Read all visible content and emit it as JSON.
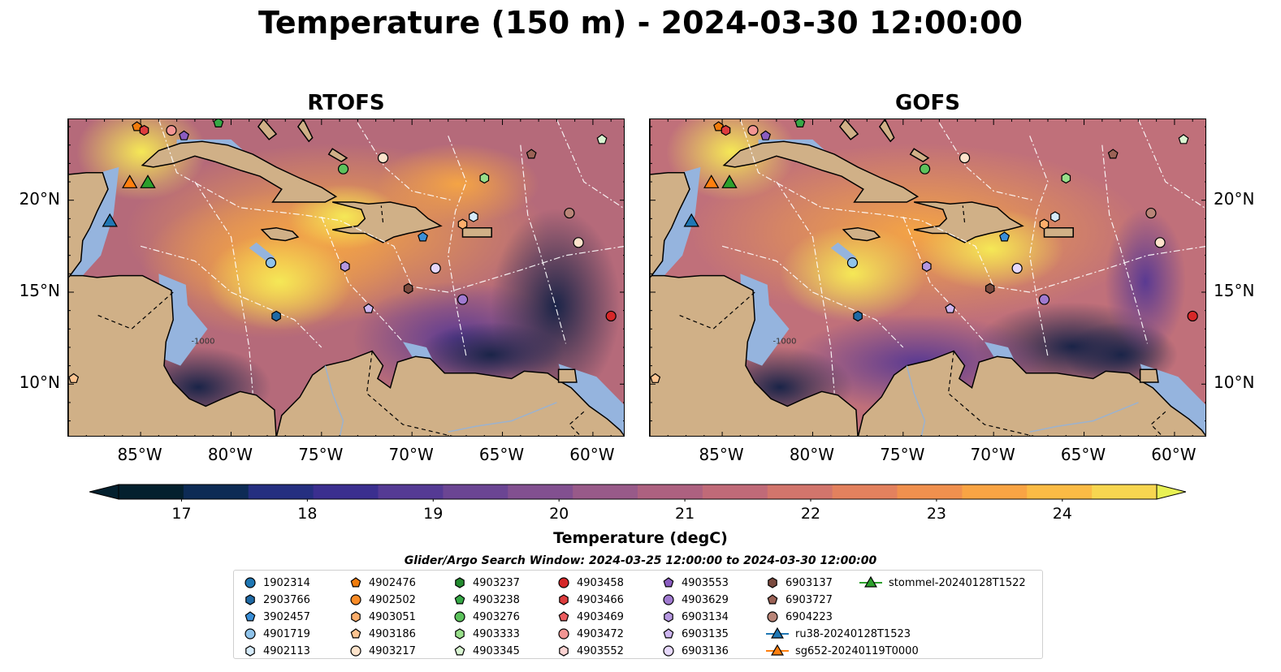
{
  "title": "Temperature (150 m) - 2024-03-30 12:00:00",
  "panels": [
    {
      "title": "RTOFS"
    },
    {
      "title": "GOFS"
    }
  ],
  "longitude_ticks": [
    "85°W",
    "80°W",
    "75°W",
    "70°W",
    "65°W",
    "60°W"
  ],
  "latitude_ticks": [
    "20°N",
    "15°N",
    "10°N"
  ],
  "colorbar": {
    "title": "Temperature (degC)",
    "ticks": [
      "17",
      "18",
      "19",
      "20",
      "21",
      "22",
      "23",
      "24"
    ],
    "range": [
      16.5,
      24.75
    ],
    "colors": [
      "#04202e",
      "#0d2b55",
      "#252f80",
      "#3b2f8f",
      "#553a94",
      "#6b4593",
      "#825090",
      "#985a89",
      "#ad6180",
      "#c06a78",
      "#d2756c",
      "#e3815e",
      "#f0904e",
      "#f9a444",
      "#fbbb45",
      "#f7d650",
      "#e8f154"
    ]
  },
  "contour_label": "-1000",
  "search_window": "Glider/Argo Search Window: 2024-03-25 12:00:00 to 2024-03-30 12:00:00",
  "legend": [
    {
      "label": "1902314",
      "marker": "circle",
      "color": "#1f77b4"
    },
    {
      "label": "2903766",
      "marker": "hexagon",
      "color": "#1f6aa5"
    },
    {
      "label": "3902457",
      "marker": "pentagon",
      "color": "#3a8fd8"
    },
    {
      "label": "4901719",
      "marker": "circle",
      "color": "#8fc3ea"
    },
    {
      "label": "4902113",
      "marker": "hexagon",
      "color": "#d6ebfa"
    },
    {
      "label": "4902476",
      "marker": "pentagon",
      "color": "#f07c0c"
    },
    {
      "label": "4902502",
      "marker": "circle",
      "color": "#fb8c27"
    },
    {
      "label": "4903051",
      "marker": "hexagon",
      "color": "#fdae6b"
    },
    {
      "label": "4903186",
      "marker": "pentagon",
      "color": "#fdc592"
    },
    {
      "label": "4903217",
      "marker": "circle",
      "color": "#fde3cb"
    },
    {
      "label": "4903237",
      "marker": "hexagon",
      "color": "#238b2f"
    },
    {
      "label": "4903238",
      "marker": "pentagon",
      "color": "#35a845"
    },
    {
      "label": "4903276",
      "marker": "circle",
      "color": "#5cc25c"
    },
    {
      "label": "4903333",
      "marker": "hexagon",
      "color": "#98df8a"
    },
    {
      "label": "4903345",
      "marker": "pentagon",
      "color": "#d9f5d2"
    },
    {
      "label": "4903458",
      "marker": "circle",
      "color": "#d62728"
    },
    {
      "label": "4903466",
      "marker": "hexagon",
      "color": "#dd3c3d"
    },
    {
      "label": "4903469",
      "marker": "pentagon",
      "color": "#ec5d5f"
    },
    {
      "label": "4903472",
      "marker": "circle",
      "color": "#f39593"
    },
    {
      "label": "4903552",
      "marker": "hexagon",
      "color": "#fbd3d2"
    },
    {
      "label": "4903553",
      "marker": "pentagon",
      "color": "#8a5cc0"
    },
    {
      "label": "4903629",
      "marker": "circle",
      "color": "#a07ad0"
    },
    {
      "label": "6903134",
      "marker": "hexagon",
      "color": "#b597e0"
    },
    {
      "label": "6903135",
      "marker": "pentagon",
      "color": "#cdb5ef"
    },
    {
      "label": "6903136",
      "marker": "circle",
      "color": "#e6d8fb"
    },
    {
      "label": "6903137",
      "marker": "hexagon",
      "color": "#7b4a3e"
    },
    {
      "label": "6903727",
      "marker": "pentagon",
      "color": "#9b6256"
    },
    {
      "label": "6904223",
      "marker": "circle",
      "color": "#b98578"
    },
    {
      "label": "ru38-20240128T1523",
      "marker": "triangle-line",
      "color": "#1f77b4"
    },
    {
      "label": "sg652-20240119T0000",
      "marker": "triangle-line",
      "color": "#ff7f0e"
    },
    {
      "label": "stommel-20240128T1522",
      "marker": "triangle-line",
      "color": "#2ca02c"
    }
  ],
  "float_positions": [
    {
      "id": "4902476",
      "lon": -85.2,
      "lat": 24.0
    },
    {
      "id": "4903466",
      "lon": -84.8,
      "lat": 23.8
    },
    {
      "id": "4903472",
      "lon": -83.3,
      "lat": 23.8
    },
    {
      "id": "4903553",
      "lon": -82.6,
      "lat": 23.5
    },
    {
      "id": "4903238",
      "lon": -80.7,
      "lat": 24.2
    },
    {
      "id": "4903276",
      "lon": -73.8,
      "lat": 21.7
    },
    {
      "id": "4903217",
      "lon": -71.6,
      "lat": 22.3
    },
    {
      "id": "6903727",
      "lon": -63.4,
      "lat": 22.5
    },
    {
      "id": "4903345",
      "lon": -59.5,
      "lat": 23.3
    },
    {
      "id": "4903333",
      "lon": -66.0,
      "lat": 21.2
    },
    {
      "id": "6904223",
      "lon": -61.3,
      "lat": 19.3
    },
    {
      "id": "4902113",
      "lon": -66.6,
      "lat": 19.1
    },
    {
      "id": "4903051",
      "lon": -67.2,
      "lat": 18.7
    },
    {
      "id": "3902457",
      "lon": -69.4,
      "lat": 18.0
    },
    {
      "id": "4903217",
      "lon": -60.8,
      "lat": 17.7
    },
    {
      "id": "4901719",
      "lon": -77.8,
      "lat": 16.6
    },
    {
      "id": "6903134",
      "lon": -73.7,
      "lat": 16.4
    },
    {
      "id": "6903136",
      "lon": -68.7,
      "lat": 16.3
    },
    {
      "id": "6903137",
      "lon": -70.2,
      "lat": 15.2
    },
    {
      "id": "4903629",
      "lon": -67.2,
      "lat": 14.6
    },
    {
      "id": "6903135",
      "lon": -72.4,
      "lat": 14.1
    },
    {
      "id": "2903766",
      "lon": -77.5,
      "lat": 13.7
    },
    {
      "id": "4903458",
      "lon": -59.0,
      "lat": 13.7
    },
    {
      "id": "4903186",
      "lon": -88.7,
      "lat": 10.3
    }
  ],
  "glider_positions": [
    {
      "id": "ru38-20240128T1523",
      "lon": -86.7,
      "lat": 18.8
    },
    {
      "id": "sg652-20240119T0000",
      "lon": -85.6,
      "lat": 20.9
    },
    {
      "id": "stommel-20240128T1522",
      "lon": -84.6,
      "lat": 20.9
    }
  ]
}
